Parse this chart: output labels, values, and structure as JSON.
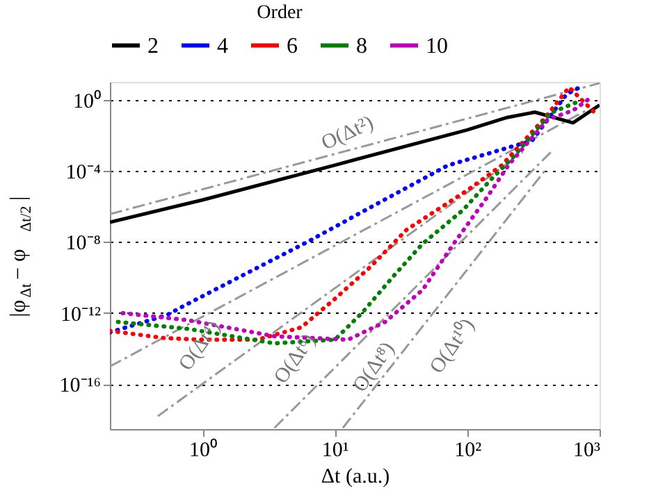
{
  "chart_data": {
    "type": "line",
    "xlabel": "Δt (a.u.)",
    "ylabel": "|φ$_{Δt}$ − φ$_{Δt/2}$|",
    "legend_title": "Order",
    "legend": "top",
    "log": "xy",
    "grid": "y",
    "xlim": [
      0.2,
      1000
    ],
    "ylim": [
      3e-19,
      10
    ],
    "xticks": [
      {
        "value": 1,
        "label": "10⁰"
      },
      {
        "value": 10,
        "label": "10¹"
      },
      {
        "value": 100,
        "label": "10²"
      },
      {
        "value": 1000,
        "label": "10³"
      }
    ],
    "yticks": [
      {
        "value": 1,
        "label": "10⁰"
      },
      {
        "value": 0.0001,
        "label": "10⁻⁴"
      },
      {
        "value": 1e-08,
        "label": "10⁻⁸"
      },
      {
        "value": 1e-12,
        "label": "10⁻¹²"
      },
      {
        "value": 1e-16,
        "label": "10⁻¹⁶"
      }
    ],
    "series": [
      {
        "name": "2",
        "color": "#000000",
        "line_style": "solid",
        "x": [
          0.2,
          1,
          10,
          100,
          200,
          324,
          630,
          1000
        ],
        "values": [
          1.3e-07,
          2.3e-06,
          0.00021,
          0.02,
          0.1,
          0.2,
          0.05,
          0.5
        ]
      },
      {
        "name": "4",
        "color": "#0000ff",
        "line_style": "dotted",
        "x": [
          0.2,
          0.54,
          0.68,
          2.0,
          6.2,
          18.6,
          71,
          309,
          562,
          708
        ],
        "values": [
          8.3e-14,
          7.9e-13,
          2e-12,
          1.3e-10,
          1e-08,
          8.9e-07,
          0.0002,
          0.005,
          2,
          5
        ]
      },
      {
        "name": "6",
        "color": "#ff0000",
        "line_style": "dotted",
        "x": [
          0.2,
          0.51,
          0.98,
          2.6,
          5.6,
          10,
          18.6,
          35,
          100,
          182,
          389,
          589,
          955
        ],
        "values": [
          1e-13,
          4e-14,
          3.2e-14,
          3.2e-14,
          1.6e-13,
          6.3e-12,
          4e-10,
          5e-08,
          7.9e-06,
          0.0002,
          0.1,
          5,
          0.14
        ]
      },
      {
        "name": "8",
        "color": "#008000",
        "line_style": "dotted",
        "x": [
          0.23,
          0.78,
          3.5,
          10,
          16,
          28,
          46,
          93,
          151,
          224,
          427,
          692
        ],
        "values": [
          3.2e-13,
          1.3e-13,
          2e-14,
          3.2e-14,
          1e-12,
          1.3e-10,
          7.9e-09,
          6.3e-07,
          3.2e-05,
          0.00063,
          0.18,
          0.79
        ]
      },
      {
        "name": "10",
        "color": "#bf00bf",
        "line_style": "dotted",
        "x": [
          0.25,
          0.78,
          3.5,
          12.6,
          24,
          46,
          79,
          141,
          204,
          407,
          631,
          871
        ],
        "values": [
          1e-12,
          4e-13,
          5e-14,
          3.2e-14,
          3.2e-13,
          2e-11,
          7.9e-09,
          3.2e-06,
          0.0002,
          0.079,
          0.25,
          1.4
        ]
      },
      {
        "type": "line",
        "color": "#999999",
        "line_style": "dashed",
        "x": [
          0.2,
          1000
        ],
        "values": [
          3.7e-07,
          8.5
        ]
      },
      {
        "type": "line",
        "color": "#999999",
        "line_style": "dashed",
        "x": [
          0.2,
          794
        ],
        "values": [
          1e-15,
          0.25
        ]
      },
      {
        "type": "line",
        "color": "#999999",
        "line_style": "dashed",
        "x": [
          0.46,
          263
        ],
        "values": [
          1.6e-18,
          0.0011
        ]
      },
      {
        "type": "line",
        "color": "#999999",
        "line_style": "dashed",
        "x": [
          3.5,
          427
        ],
        "values": [
          3.5e-19,
          0.0011
        ]
      },
      {
        "type": "line",
        "color": "#999999",
        "line_style": "dashed",
        "x": [
          11.5,
          389
        ],
        "values": [
          3.5e-19,
          0.00011
        ]
      }
    ],
    "annotations": [
      "O(Δt²)",
      "O(Δt⁴)",
      "O(Δt⁶)",
      "O(Δt⁸)",
      "O(Δt¹⁰)"
    ]
  }
}
